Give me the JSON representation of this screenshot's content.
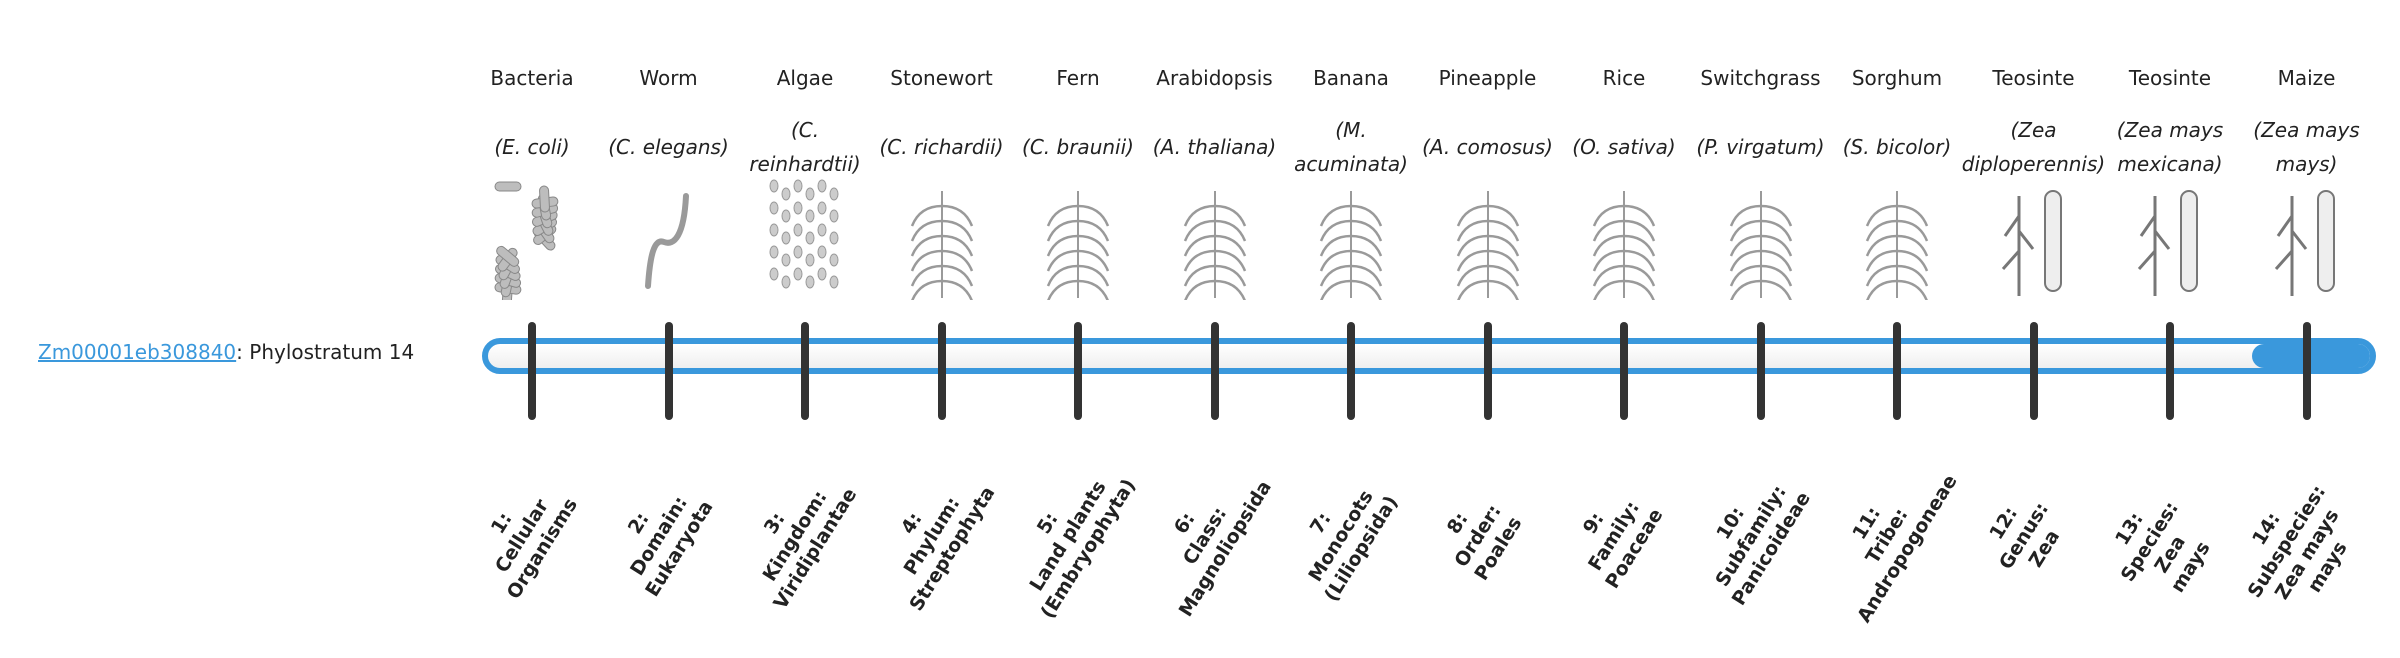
{
  "gene": {
    "id": "Zm00001eb308840",
    "suffix": ": Phylostratum 14"
  },
  "progress": {
    "current": 14,
    "total": 14
  },
  "colors": {
    "accent": "#3a98dc",
    "tick": "#333333"
  },
  "organisms": [
    {
      "common": "Bacteria",
      "species": "(E. coli)",
      "icon": "bacteria-icon",
      "stratum": "1:\nCellular\nOrganisms"
    },
    {
      "common": "Worm",
      "species": "(C. elegans)",
      "icon": "worm-icon",
      "stratum": "2:\nDomain:\nEukaryota"
    },
    {
      "common": "Algae",
      "species": "(C. reinhardtii)",
      "icon": "algae-icon",
      "stratum": "3:\nKingdom:\nViridiplantae"
    },
    {
      "common": "Stonewort",
      "species": "(C. richardii)",
      "icon": "stonewort-icon",
      "stratum": "4:\nPhylum:\nStreptophyta"
    },
    {
      "common": "Fern",
      "species": "(C. braunii)",
      "icon": "fern-icon",
      "stratum": "5:\nLand plants\n(Embryophyta)"
    },
    {
      "common": "Arabidopsis",
      "species": "(A. thaliana)",
      "icon": "arabidopsis-icon",
      "stratum": "6:\nClass:\nMagnoliopsida"
    },
    {
      "common": "Banana",
      "species": "(M. acuminata)",
      "icon": "banana-icon",
      "stratum": "7:\nMonocots\n(Liliopsida)"
    },
    {
      "common": "Pineapple",
      "species": "(A. comosus)",
      "icon": "pineapple-icon",
      "stratum": "8:\nOrder:\nPoales"
    },
    {
      "common": "Rice",
      "species": "(O. sativa)",
      "icon": "rice-icon",
      "stratum": "9:\nFamily:\nPoaceae"
    },
    {
      "common": "Switchgrass",
      "species": "(P. virgatum)",
      "icon": "switchgrass-icon",
      "stratum": "10:\nSubfamily:\nPanicoideae"
    },
    {
      "common": "Sorghum",
      "species": "(S. bicolor)",
      "icon": "sorghum-icon",
      "stratum": "11:\nTribe:\nAndropogoneae"
    },
    {
      "common": "Teosinte",
      "species": "(Zea diploperennis)",
      "icon": "teosinte-icon",
      "stratum": "12:\nGenus:\nZea"
    },
    {
      "common": "Teosinte",
      "species": "(Zea mays mexicana)",
      "icon": "teosinte-mexicana-icon",
      "stratum": "13:\nSpecies:\nZea\nmays"
    },
    {
      "common": "Maize",
      "species": "(Zea mays mays)",
      "icon": "maize-icon",
      "stratum": "14:\nSubspecies:\nZea mays\nmays"
    }
  ]
}
